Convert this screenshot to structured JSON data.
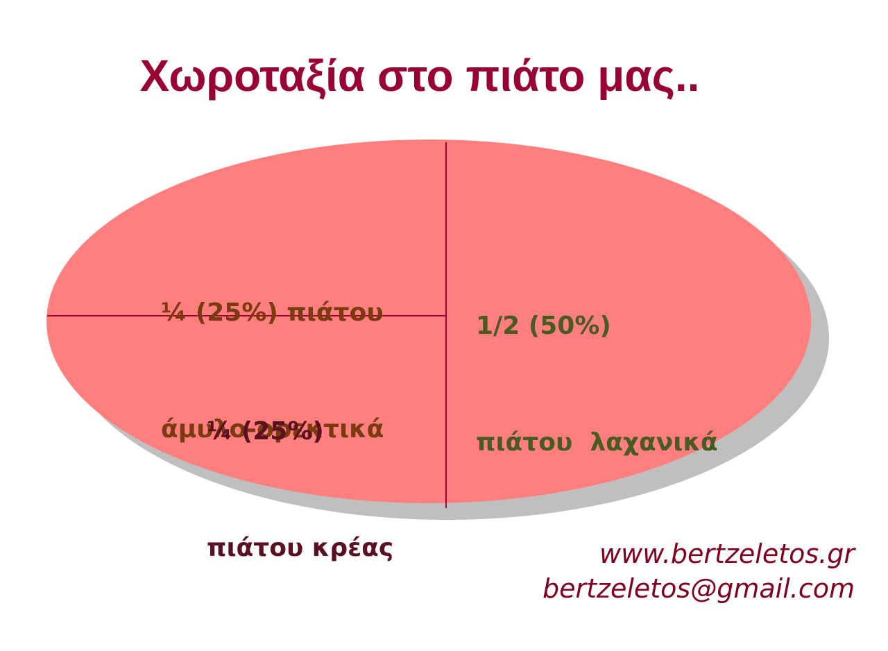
{
  "title": "Χωροταξία στο πιάτο μας..",
  "sections": [
    {
      "lines": [
        "¼ (25%) πιάτου",
        "άμυλο-ορεκτικά"
      ]
    },
    {
      "lines": [
        "1/2 (50%)",
        "πιάτου  λαχανικά"
      ]
    },
    {
      "lines": [
        "¼ (25%)",
        "πιάτου κρέας"
      ]
    }
  ],
  "footer": [
    "www.bertzeletos.gr",
    "bertzeletos@gmail.com"
  ]
}
